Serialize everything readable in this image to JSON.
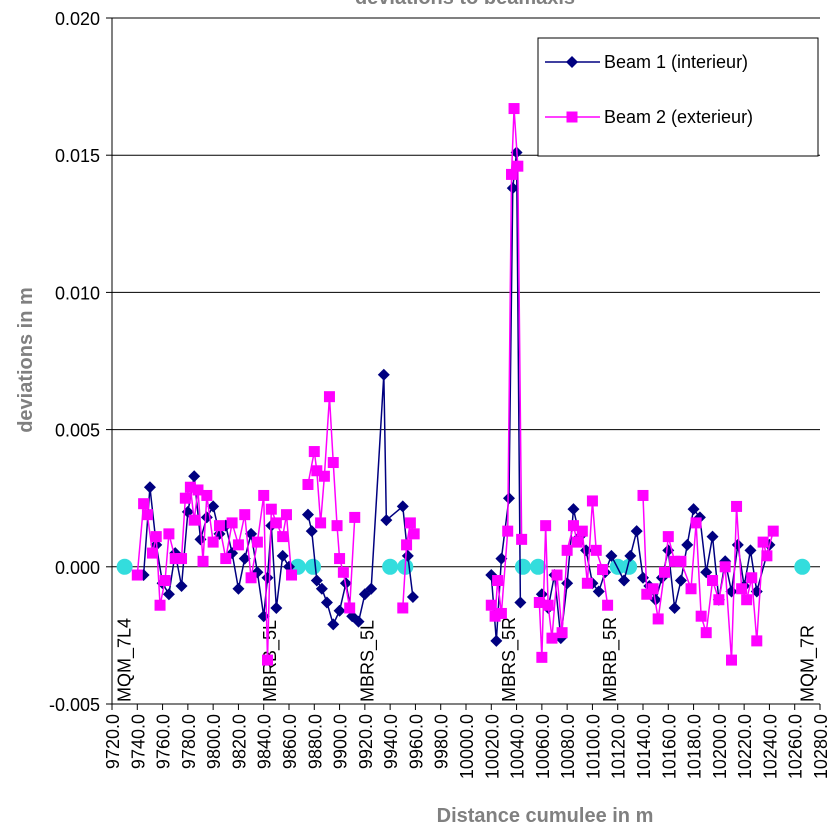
{
  "chart_data": {
    "type": "line",
    "title": "deviations to beamaxis",
    "x_label": "Distance cumulee in m",
    "y_label": "deviations in m",
    "xlim": [
      9720,
      10280
    ],
    "xticks": [
      {
        "value": 9720,
        "label": "9720.0"
      },
      {
        "value": 9740,
        "label": "9740.0"
      },
      {
        "value": 9760,
        "label": "9760.0"
      },
      {
        "value": 9780,
        "label": "9780.0"
      },
      {
        "value": 9800,
        "label": "9800.0"
      },
      {
        "value": 9820,
        "label": "9820.0"
      },
      {
        "value": 9840,
        "label": "9840.0"
      },
      {
        "value": 9860,
        "label": "9860.0"
      },
      {
        "value": 9880,
        "label": "9880.0"
      },
      {
        "value": 9900,
        "label": "9900.0"
      },
      {
        "value": 9920,
        "label": "9920.0"
      },
      {
        "value": 9940,
        "label": "9940.0"
      },
      {
        "value": 9960,
        "label": "9960.0"
      },
      {
        "value": 9980,
        "label": "9980.0"
      },
      {
        "value": 10000,
        "label": "10000.0"
      },
      {
        "value": 10020,
        "label": "10020.0"
      },
      {
        "value": 10040,
        "label": "10040.0"
      },
      {
        "value": 10060,
        "label": "10060.0"
      },
      {
        "value": 10080,
        "label": "10080.0"
      },
      {
        "value": 10100,
        "label": "10100.0"
      },
      {
        "value": 10120,
        "label": "10120.0"
      },
      {
        "value": 10140,
        "label": "10140.0"
      },
      {
        "value": 10160,
        "label": "10160.0"
      },
      {
        "value": 10180,
        "label": "10180.0"
      },
      {
        "value": 10200,
        "label": "10200.0"
      },
      {
        "value": 10220,
        "label": "10220.0"
      },
      {
        "value": 10240,
        "label": "10240.0"
      },
      {
        "value": 10260,
        "label": "10260.0"
      },
      {
        "value": 10280,
        "label": "10280.0"
      }
    ],
    "ylim": [
      -0.005,
      0.02
    ],
    "yticks": [
      {
        "value": -0.005,
        "label": "-0.005"
      },
      {
        "value": 0,
        "label": "0.000"
      },
      {
        "value": 0.005,
        "label": "0.005"
      },
      {
        "value": 0.01,
        "label": "0.010"
      },
      {
        "value": 0.015,
        "label": "0.015"
      },
      {
        "value": 0.02,
        "label": "0.020"
      }
    ],
    "grid": true,
    "legend": "top-right",
    "series": [
      {
        "name": "Beam 1 (interieur)",
        "color": "#000080",
        "marker": "diamond",
        "x": [
          9745,
          9750,
          9755,
          9760,
          9765,
          9770,
          9775,
          9780,
          9785,
          9790,
          9795,
          9800,
          9805,
          9810,
          9815,
          9820,
          9825,
          9830,
          9835,
          9840,
          9843,
          9846,
          9850,
          9855,
          9860,
          9868,
          9875,
          9878,
          9882,
          9886,
          9890,
          9895,
          9900,
          9905,
          9910,
          9915,
          9920,
          9925,
          9935,
          9937,
          9950,
          9954,
          9958,
          9990,
          10020,
          10024,
          10028,
          10034,
          10037,
          10040,
          10043,
          10052,
          10060,
          10065,
          10070,
          10075,
          10080,
          10085,
          10090,
          10095,
          10100,
          10105,
          10110,
          10115,
          10125,
          10130,
          10135,
          10140,
          10145,
          10150,
          10155,
          10160,
          10165,
          10170,
          10175,
          10180,
          10185,
          10190,
          10195,
          10200,
          10205,
          10210,
          10215,
          10220,
          10225,
          10230,
          10240
        ],
        "values": [
          -0.0003,
          0.0029,
          0.0008,
          -0.0006,
          -0.001,
          0.0005,
          -0.0007,
          0.002,
          0.0033,
          0.001,
          0.0018,
          0.0022,
          0.0012,
          0.0015,
          0.0005,
          -0.0008,
          0.0003,
          0.0012,
          -0.0002,
          -0.0018,
          -0.0004,
          0.0015,
          -0.0015,
          0.0004,
          0,
          null,
          0.0019,
          0.0013,
          -0.0005,
          -0.0008,
          -0.0013,
          -0.0021,
          -0.0016,
          -0.0006,
          -0.0018,
          -0.002,
          -0.001,
          -0.0008,
          0.007,
          0.0017,
          0.0022,
          0.0004,
          -0.0011,
          null,
          -0.0003,
          -0.0027,
          0.0003,
          0.0025,
          0.0138,
          0.0151,
          -0.0013,
          null,
          -0.001,
          -0.0015,
          -0.0003,
          -0.0026,
          -0.0006,
          0.0021,
          0.0011,
          0.0006,
          -0.0006,
          -0.0009,
          -0.0002,
          0.0004,
          -0.0005,
          0.0004,
          0.0013,
          -0.0004,
          -0.0007,
          -0.0012,
          -0.0004,
          0.0006,
          -0.0015,
          -0.0005,
          0.0008,
          0.0021,
          0.0018,
          -0.0002,
          0.0011,
          -0.0012,
          0.0002,
          -0.0009,
          0.0008,
          -0.0007,
          0.0006,
          -0.0009,
          0.0008
        ]
      },
      {
        "name": "Beam 2 (exterieur)",
        "color": "#ff00ff",
        "marker": "square",
        "x": [
          9740,
          9745,
          9748,
          9752,
          9755,
          9758,
          9762,
          9765,
          9770,
          9775,
          9778,
          9782,
          9785,
          9788,
          9792,
          9795,
          9800,
          9805,
          9810,
          9815,
          9820,
          9825,
          9830,
          9835,
          9840,
          9843,
          9846,
          9850,
          9855,
          9858,
          9862,
          9868,
          9875,
          9880,
          9882,
          9885,
          9888,
          9892,
          9895,
          9898,
          9900,
          9903,
          9908,
          9912,
          9930,
          9950,
          9953,
          9956,
          9959,
          9990,
          10020,
          10023,
          10025,
          10028,
          10033,
          10036,
          10038,
          10041,
          10044,
          10051,
          10058,
          10060,
          10063,
          10065,
          10068,
          10072,
          10076,
          10080,
          10085,
          10088,
          10092,
          10096,
          10100,
          10103,
          10108,
          10112,
          10126,
          10140,
          10143,
          10148,
          10152,
          10157,
          10160,
          10165,
          10170,
          10178,
          10182,
          10186,
          10190,
          10195,
          10200,
          10205,
          10210,
          10214,
          10218,
          10222,
          10226,
          10230,
          10235,
          10238,
          10243
        ],
        "values": [
          -0.0003,
          0.0023,
          0.0019,
          0.0005,
          0.0011,
          -0.0014,
          -0.0005,
          0.0012,
          0.0003,
          0.0003,
          0.0025,
          0.0029,
          0.0017,
          0.0028,
          0.0002,
          0.0026,
          0.0009,
          0.0015,
          0.0003,
          0.0016,
          0.0008,
          0.0019,
          -0.0004,
          0.0009,
          0.0026,
          -0.0034,
          0.0021,
          0.0016,
          0.0011,
          0.0019,
          -0.0003,
          null,
          0.003,
          0.0042,
          0.0035,
          0.0016,
          0.0033,
          0.0062,
          0.0038,
          0.0015,
          0.0003,
          -0.0002,
          -0.0015,
          0.0018,
          null,
          -0.0015,
          0.0008,
          0.0016,
          0.0012,
          null,
          -0.0014,
          -0.0018,
          -0.0005,
          -0.0017,
          0.0013,
          0.0143,
          0.0167,
          0.0146,
          0.001,
          null,
          -0.0013,
          -0.0033,
          0.0015,
          -0.0014,
          -0.0026,
          -0.0003,
          -0.0024,
          0.0006,
          0.0015,
          0.0009,
          0.0013,
          -0.0006,
          0.0024,
          0.0006,
          -0.0001,
          -0.0014,
          null,
          0.0026,
          -0.001,
          -0.0008,
          -0.0019,
          -0.0002,
          0.0011,
          0.0002,
          0.0002,
          -0.0008,
          0.0016,
          -0.0018,
          -0.0024,
          -0.0005,
          -0.0012,
          0,
          -0.0034,
          0.0022,
          -0.0008,
          -0.0012,
          -0.0004,
          -0.0027,
          0.0009,
          0.0004,
          0.0013
        ]
      }
    ],
    "magnets": {
      "color": "#33dddd",
      "x": [
        9730,
        9867,
        9879,
        9940,
        9952,
        10045,
        10057,
        10120,
        10129,
        10266
      ],
      "values": [
        0,
        0,
        0,
        0,
        0,
        0,
        0,
        0,
        0,
        0
      ]
    },
    "annotations": [
      {
        "text": "MQM_7L4",
        "x": 9730
      },
      {
        "text": "MBRB_5L",
        "x": 9845
      },
      {
        "text": "MBRS_5L",
        "x": 9922
      },
      {
        "text": "MBRS_5R",
        "x": 10034
      },
      {
        "text": "MBRB_5R",
        "x": 10114
      },
      {
        "text": "MQM_7R",
        "x": 10270
      }
    ]
  }
}
